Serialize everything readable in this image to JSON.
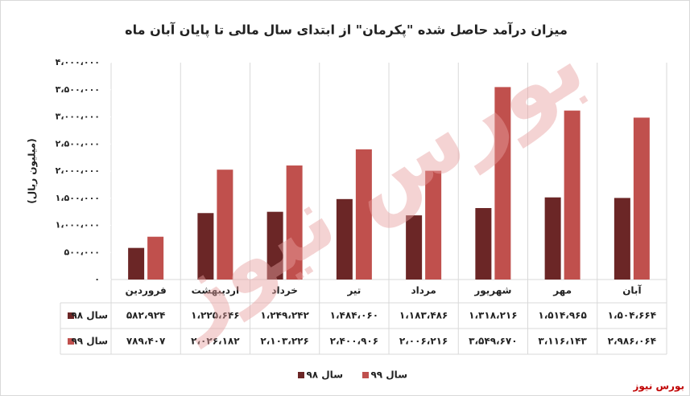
{
  "chart_data": {
    "type": "bar",
    "title": "میزان درآمد حاصل شده \"پکرمان\" از ابتدای سال مالی تا پایان آبان ماه",
    "y_label": "(میلیون ریال)",
    "watermark": "بورس نیوز",
    "source": "بورس نیوز",
    "categories": [
      "فروردین",
      "اردیبهشت",
      "خرداد",
      "تیر",
      "مرداد",
      "شهریور",
      "مهر",
      "آبان"
    ],
    "series": [
      {
        "name": "سال ۹۸",
        "color": "#6b2626",
        "values": [
          582924,
          1225646,
          1249242,
          1484060,
          1183486,
          1318216,
          1514965,
          1504664
        ],
        "value_labels": [
          "۵۸۲،۹۲۴",
          "۱،۲۲۵،۶۴۶",
          "۱،۲۴۹،۲۴۲",
          "۱،۴۸۴،۰۶۰",
          "۱،۱۸۳،۴۸۶",
          "۱،۳۱۸،۲۱۶",
          "۱،۵۱۴،۹۶۵",
          "۱،۵۰۴،۶۶۴"
        ]
      },
      {
        "name": "سال ۹۹",
        "color": "#c0504d",
        "values": [
          789407,
          2026182,
          2103226,
          2400906,
          2006216,
          3549670,
          3116143,
          2986064
        ],
        "value_labels": [
          "۷۸۹،۴۰۷",
          "۲،۰۲۶،۱۸۲",
          "۲،۱۰۳،۲۲۶",
          "۲،۴۰۰،۹۰۶",
          "۲،۰۰۶،۲۱۶",
          "۳،۵۴۹،۶۷۰",
          "۳،۱۱۶،۱۴۳",
          "۲،۹۸۶،۰۶۴"
        ]
      }
    ],
    "ylim": [
      0,
      4000000
    ],
    "yticks": [
      {
        "value": 0,
        "label": "۰"
      },
      {
        "value": 500000,
        "label": "۵۰۰،۰۰۰"
      },
      {
        "value": 1000000,
        "label": "۱،۰۰۰،۰۰۰"
      },
      {
        "value": 1500000,
        "label": "۱،۵۰۰،۰۰۰"
      },
      {
        "value": 2000000,
        "label": "۲،۰۰۰،۰۰۰"
      },
      {
        "value": 2500000,
        "label": "۲،۵۰۰،۰۰۰"
      },
      {
        "value": 3000000,
        "label": "۳،۰۰۰،۰۰۰"
      },
      {
        "value": 3500000,
        "label": "۳،۵۰۰،۰۰۰"
      },
      {
        "value": 4000000,
        "label": "۴،۰۰۰،۰۰۰"
      }
    ],
    "grid": false
  }
}
